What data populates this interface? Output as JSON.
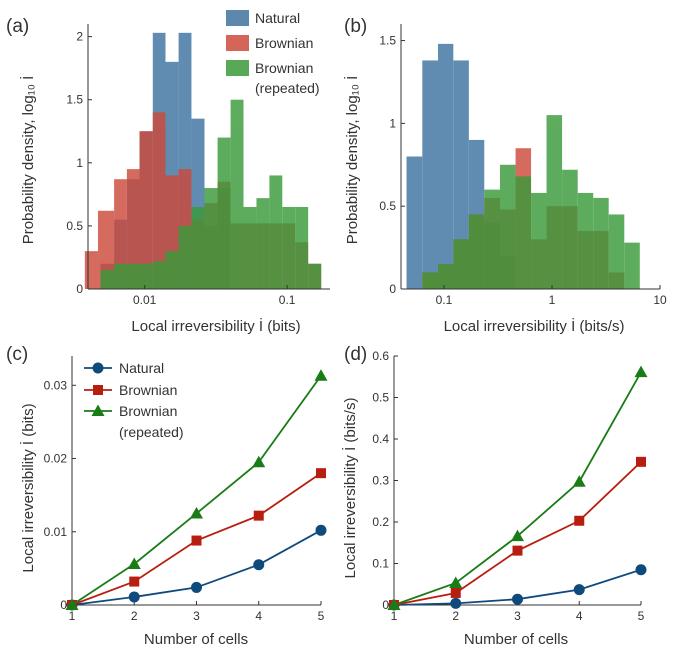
{
  "colors": {
    "natural": "#3f73a0",
    "brownian": "#cd4a3b",
    "repeated": "#3a9a3a",
    "natural_line": "#0f4a7c",
    "brownian_line": "#b81e10",
    "repeated_line": "#1a7c16",
    "axis": "#333333"
  },
  "chart_data": [
    {
      "panel": "(a)",
      "type": "histogram",
      "xscale": "log",
      "xlabel": "Local irreversibility İ (bits)",
      "ylabel": "Probability density, log₁₀ İ",
      "xlim": [
        0.004,
        0.2
      ],
      "ylim": [
        0,
        2.1
      ],
      "xticks": [
        {
          "v": 0.01,
          "label": "0.01"
        },
        {
          "v": 0.1,
          "label": "0.1"
        }
      ],
      "yticks": [
        {
          "v": 0,
          "label": "0"
        },
        {
          "v": 0.5,
          "label": "0.5"
        },
        {
          "v": 1,
          "label": "1"
        },
        {
          "v": 1.5,
          "label": "1.5"
        },
        {
          "v": 2,
          "label": "2"
        }
      ],
      "legend": [
        {
          "key": "natural",
          "label": "Natural"
        },
        {
          "key": "brownian",
          "label": "Brownian"
        },
        {
          "key": "repeated",
          "label": "Brownian"
        },
        {
          "key": "",
          "label": "(repeated)"
        }
      ],
      "series": [
        {
          "key": "natural",
          "name": "Natural",
          "edges": [
            0.0049,
            0.0061,
            0.0075,
            0.0092,
            0.0114,
            0.014,
            0.0173,
            0.0213,
            0.0263,
            0.0325,
            0.0401
          ],
          "counts": [
            0.2,
            0.55,
            0.87,
            1.25,
            2.03,
            1.8,
            2.03,
            1.35,
            0.5,
            0.8
          ]
        },
        {
          "key": "brownian",
          "name": "Brownian",
          "edges": [
            0.0038,
            0.0047,
            0.0061,
            0.0075,
            0.0092,
            0.0114,
            0.014,
            0.0173,
            0.0213,
            0.0263,
            0.0325,
            0.0401,
            0.0494,
            0.0609,
            0.0751,
            0.0925,
            0.114,
            0.1405,
            0.1735
          ],
          "counts": [
            0.3,
            0.62,
            0.87,
            0.95,
            1.25,
            1.4,
            0.9,
            0.95,
            0.55,
            0.68,
            0.85,
            0.52,
            0.52,
            0.52,
            0.52,
            0.52,
            0.37,
            0.2
          ]
        },
        {
          "key": "repeated",
          "name": "Brownian (repeated)",
          "edges": [
            0.0049,
            0.0061,
            0.0075,
            0.0092,
            0.0114,
            0.014,
            0.0173,
            0.0213,
            0.0263,
            0.0325,
            0.0401,
            0.0494,
            0.0609,
            0.0751,
            0.0925,
            0.114,
            0.1405,
            0.1735
          ],
          "counts": [
            0.15,
            0.2,
            0.2,
            0.2,
            0.22,
            0.3,
            0.5,
            0.65,
            0.8,
            1.2,
            1.5,
            0.65,
            0.72,
            0.9,
            0.65,
            0.65,
            0.2
          ]
        }
      ]
    },
    {
      "panel": "(b)",
      "type": "histogram",
      "xscale": "log",
      "xlabel": "Local irreversibility İ (bits/s)",
      "ylabel": "Probability density, log₁₀ İ",
      "xlim": [
        0.04,
        10
      ],
      "ylim": [
        0,
        1.6
      ],
      "xticks": [
        {
          "v": 0.1,
          "label": "0.1"
        },
        {
          "v": 1,
          "label": "1"
        },
        {
          "v": 10,
          "label": "10"
        }
      ],
      "yticks": [
        {
          "v": 0,
          "label": "0"
        },
        {
          "v": 0.5,
          "label": "0.5"
        },
        {
          "v": 1,
          "label": "1"
        },
        {
          "v": 1.5,
          "label": "1.5"
        }
      ],
      "series": [
        {
          "key": "natural",
          "name": "Natural",
          "edges": [
            0.045,
            0.063,
            0.088,
            0.122,
            0.17,
            0.236,
            0.33,
            0.46
          ],
          "counts": [
            0.8,
            1.38,
            1.48,
            1.38,
            0.9,
            0.4,
            0.2
          ]
        },
        {
          "key": "brownian",
          "name": "Brownian",
          "edges": [
            0.063,
            0.088,
            0.122,
            0.17,
            0.236,
            0.33,
            0.46,
            0.64,
            0.89,
            1.24,
            1.73,
            2.41,
            3.35,
            4.67
          ],
          "counts": [
            0.1,
            0.15,
            0.3,
            0.45,
            0.55,
            0.48,
            0.85,
            0.3,
            0.5,
            0.5,
            0.35,
            0.35,
            0.1
          ]
        },
        {
          "key": "repeated",
          "name": "Brownian (repeated)",
          "edges": [
            0.063,
            0.088,
            0.122,
            0.17,
            0.236,
            0.33,
            0.46,
            0.64,
            0.89,
            1.24,
            1.73,
            2.41,
            3.35,
            4.67,
            6.5
          ],
          "counts": [
            0.1,
            0.15,
            0.3,
            0.45,
            0.6,
            0.75,
            0.68,
            0.58,
            1.05,
            0.72,
            0.58,
            0.55,
            0.45,
            0.28,
            0.15
          ]
        }
      ]
    },
    {
      "panel": "(c)",
      "type": "line",
      "xlabel": "Number of cells",
      "ylabel": "Local irreversibility İ (bits)",
      "x": [
        1,
        2,
        3,
        4,
        5
      ],
      "xlim": [
        1,
        5
      ],
      "ylim": [
        0,
        0.034
      ],
      "xticks": [
        {
          "v": 1,
          "label": "1"
        },
        {
          "v": 2,
          "label": "2"
        },
        {
          "v": 3,
          "label": "3"
        },
        {
          "v": 4,
          "label": "4"
        },
        {
          "v": 5,
          "label": "5"
        }
      ],
      "yticks": [
        {
          "v": 0,
          "label": "0"
        },
        {
          "v": 0.01,
          "label": "0.01"
        },
        {
          "v": 0.02,
          "label": "0.02"
        },
        {
          "v": 0.03,
          "label": "0.03"
        }
      ],
      "legend": [
        {
          "key": "natural",
          "label": "Natural"
        },
        {
          "key": "brownian",
          "label": "Brownian"
        },
        {
          "key": "repeated",
          "label": "Brownian"
        },
        {
          "key": "",
          "label": "(repeated)"
        }
      ],
      "series": [
        {
          "key": "natural",
          "name": "Natural",
          "marker": "circle",
          "values": [
            0,
            0.0011,
            0.0024,
            0.0055,
            0.0102
          ]
        },
        {
          "key": "brownian",
          "name": "Brownian",
          "marker": "square",
          "values": [
            0,
            0.0032,
            0.0088,
            0.0122,
            0.018
          ]
        },
        {
          "key": "repeated",
          "name": "Brownian (repeated)",
          "marker": "triangle",
          "values": [
            0,
            0.0056,
            0.0125,
            0.0195,
            0.0313
          ]
        }
      ]
    },
    {
      "panel": "(d)",
      "type": "line",
      "xlabel": "Number of cells",
      "ylabel": "Local irreversibility İ (bits/s)",
      "x": [
        1,
        2,
        3,
        4,
        5
      ],
      "xlim": [
        1,
        5
      ],
      "ylim": [
        0,
        0.6
      ],
      "xticks": [
        {
          "v": 1,
          "label": "1"
        },
        {
          "v": 2,
          "label": "2"
        },
        {
          "v": 3,
          "label": "3"
        },
        {
          "v": 4,
          "label": "4"
        },
        {
          "v": 5,
          "label": "5"
        }
      ],
      "yticks": [
        {
          "v": 0,
          "label": "0"
        },
        {
          "v": 0.1,
          "label": "0.1"
        },
        {
          "v": 0.2,
          "label": "0.2"
        },
        {
          "v": 0.3,
          "label": "0.3"
        },
        {
          "v": 0.4,
          "label": "0.4"
        },
        {
          "v": 0.5,
          "label": "0.5"
        },
        {
          "v": 0.6,
          "label": "0.6"
        }
      ],
      "series": [
        {
          "key": "natural",
          "name": "Natural",
          "marker": "circle",
          "values": [
            0,
            0.004,
            0.014,
            0.037,
            0.085
          ]
        },
        {
          "key": "brownian",
          "name": "Brownian",
          "marker": "square",
          "values": [
            0,
            0.029,
            0.131,
            0.203,
            0.345
          ]
        },
        {
          "key": "repeated",
          "name": "Brownian (repeated)",
          "marker": "triangle",
          "values": [
            0,
            0.053,
            0.166,
            0.297,
            0.561
          ]
        }
      ]
    }
  ]
}
